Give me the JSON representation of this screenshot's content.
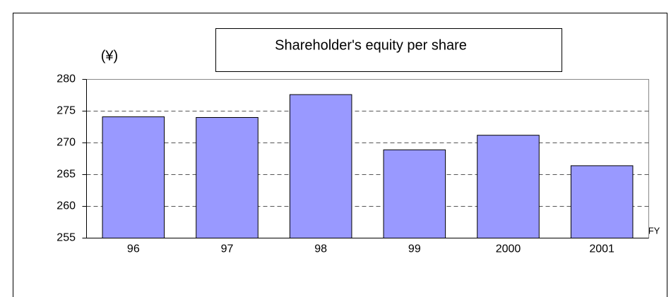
{
  "chart_data": {
    "type": "bar",
    "title": "Shareholder's equity per share",
    "ylabel": "(¥)",
    "xlabel": "FY",
    "categories": [
      "96",
      "97",
      "98",
      "99",
      "2000",
      "2001"
    ],
    "values": [
      274.1,
      274.0,
      277.6,
      268.9,
      271.2,
      266.4
    ],
    "color": "#9999ff",
    "ylim": [
      255,
      280
    ],
    "yticks": [
      255,
      260,
      265,
      270,
      275,
      280
    ],
    "grid": true
  }
}
